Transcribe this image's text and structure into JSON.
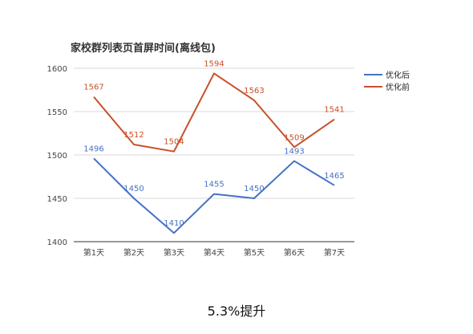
{
  "chart_data": {
    "type": "line",
    "title": "家校群列表页首屏时间(离线包)",
    "categories": [
      "第1天",
      "第2天",
      "第3天",
      "第4天",
      "第5天",
      "第6天",
      "第7天"
    ],
    "series": [
      {
        "name": "优化后",
        "color": "#4472C4",
        "values": [
          1496,
          1450,
          1410,
          1455,
          1450,
          1493,
          1465
        ]
      },
      {
        "name": "优化前",
        "color": "#C9502A",
        "values": [
          1567,
          1512,
          1504,
          1594,
          1563,
          1509,
          1541
        ]
      }
    ],
    "ylim": [
      1400,
      1600
    ],
    "yticks": [
      1400,
      1450,
      1500,
      1550,
      1600
    ],
    "grid": true,
    "legend": "right"
  },
  "caption": "5.3%提升"
}
